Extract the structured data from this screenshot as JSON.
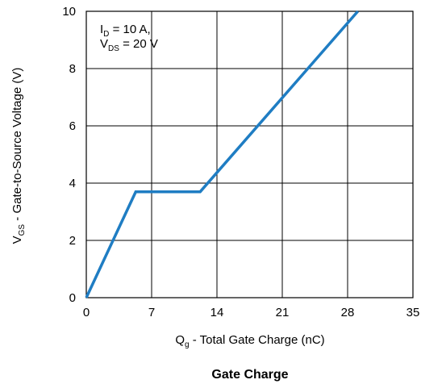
{
  "chart_data": {
    "type": "line",
    "title": "Gate Charge",
    "xlabel": {
      "main": "Q",
      "sub": "g",
      "rest": " - Total Gate Charge (nC)"
    },
    "ylabel": {
      "main": "V",
      "sub": "GS",
      "rest": " - Gate-to-Source Voltage (V)"
    },
    "xlim": [
      0,
      35
    ],
    "ylim": [
      0,
      10
    ],
    "xticks": [
      0,
      7,
      14,
      21,
      28,
      35
    ],
    "yticks": [
      0,
      2,
      4,
      6,
      8,
      10
    ],
    "grid": true,
    "series_color": "#1f7dc3",
    "series": [
      {
        "x": [
          0,
          5.3,
          12.2,
          29.1
        ],
        "y": [
          0,
          3.7,
          3.7,
          10
        ]
      }
    ],
    "annotation": {
      "line1": {
        "main": "I",
        "sub": "D",
        "rest": " = 10 A,"
      },
      "line2": {
        "main": "V",
        "sub": "DS",
        "rest": " = 20 V"
      }
    }
  }
}
